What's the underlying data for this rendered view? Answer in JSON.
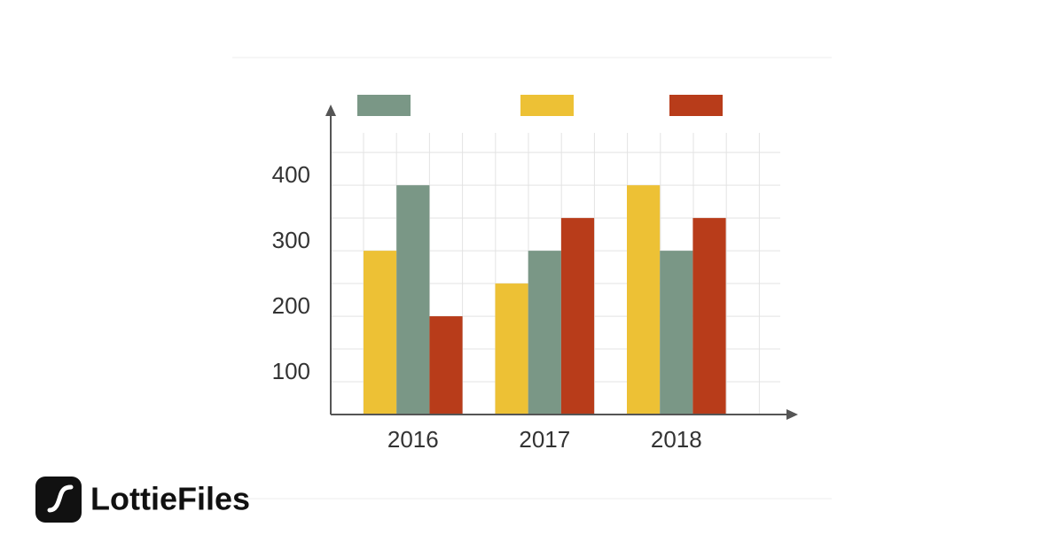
{
  "chart_data": {
    "type": "bar",
    "categories": [
      "2016",
      "2017",
      "2018"
    ],
    "series": [
      {
        "color": "#edc135",
        "values": [
          300,
          250,
          400
        ]
      },
      {
        "color": "#7a9786",
        "values": [
          400,
          300,
          300
        ]
      },
      {
        "color": "#b83c1a",
        "values": [
          200,
          350,
          350
        ]
      }
    ],
    "ylim": [
      50,
      480
    ],
    "yticks": [
      100,
      200,
      300,
      400
    ],
    "minor_yticks": [
      150,
      250,
      350,
      450
    ],
    "grid": true
  },
  "brand": "LottieFiles"
}
